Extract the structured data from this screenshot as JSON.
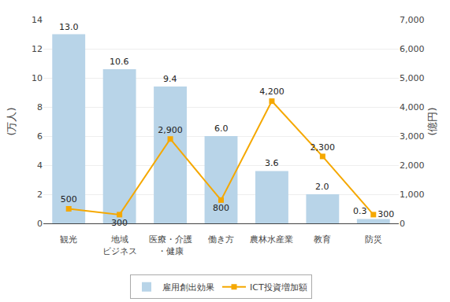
{
  "chart_data": {
    "type": "bar",
    "categories": [
      "観光",
      "地域\nビジネス",
      "医療・介護\n・健康",
      "働き方",
      "農林水産業",
      "教育",
      "防災"
    ],
    "series": [
      {
        "name": "雇用創出効果",
        "type": "bar",
        "color": "#b8d4e8",
        "values": [
          13.0,
          10.6,
          9.4,
          6.0,
          3.6,
          2.0,
          0.3
        ],
        "value_labels": [
          "13.0",
          "10.6",
          "9.4",
          "6.0",
          "3.6",
          "2.0",
          "0.3"
        ]
      },
      {
        "name": "ICT投資増加額",
        "type": "line",
        "axis": "y2",
        "color": "#f5a800",
        "marker": "square",
        "line_style": "solid",
        "values": [
          500,
          300,
          2900,
          800,
          4200,
          2300,
          300
        ],
        "value_labels": [
          "500",
          "300",
          "2,900",
          "800",
          "4,200",
          "2,300",
          "300"
        ]
      }
    ],
    "ylabel": "(万人)",
    "y2label": "(億円)",
    "ylim": [
      0,
      14
    ],
    "yticks": [
      0,
      2,
      4,
      6,
      8,
      10,
      12,
      14
    ],
    "y2lim": [
      0,
      7000
    ],
    "y2ticks": [
      0,
      {
        "value": 1000,
        "label": "1,000"
      },
      {
        "value": 2000,
        "label": "2,000"
      },
      {
        "value": 3000,
        "label": "3,000"
      },
      {
        "value": 4000,
        "label": "4,000"
      },
      {
        "value": 5000,
        "label": "5,000"
      },
      {
        "value": 6000,
        "label": "6,000"
      },
      {
        "value": 7000,
        "label": "7,000"
      }
    ],
    "grid": true,
    "legend": "bottom",
    "data_labels": true
  }
}
